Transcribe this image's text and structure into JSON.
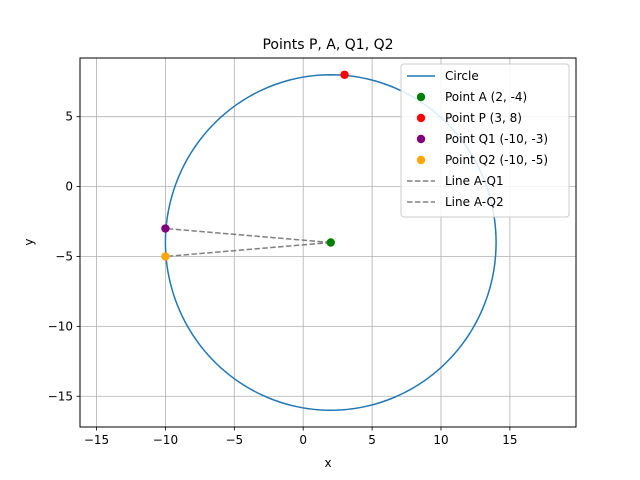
{
  "chart_data": {
    "type": "scatter",
    "title": "Points P, A, Q1, Q2",
    "xlabel": "x",
    "ylabel": "y",
    "xlim": [
      -16.2,
      19.8
    ],
    "ylim": [
      -17.2,
      9.2
    ],
    "grid": true,
    "legend_position": "top-right",
    "x_ticks": [
      -15,
      -10,
      -5,
      0,
      5,
      10,
      15
    ],
    "y_ticks": [
      -15,
      -10,
      -5,
      0,
      5
    ],
    "x_tick_labels": [
      "−15",
      "−10",
      "−5",
      "0",
      "5",
      "10",
      "15"
    ],
    "y_tick_labels": [
      "−15",
      "−10",
      "−5",
      "0",
      "5"
    ],
    "circle": {
      "name": "Circle",
      "center": [
        2,
        -4
      ],
      "radius": 12,
      "color": "#1f77b4"
    },
    "points": [
      {
        "name": "Point A (2, -4)",
        "x": 2,
        "y": -4,
        "color": "#008000"
      },
      {
        "name": "Point P (3, 8)",
        "x": 3,
        "y": 8,
        "color": "#ff0000"
      },
      {
        "name": "Point Q1 (-10, -3)",
        "x": -10,
        "y": -3,
        "color": "#800080"
      },
      {
        "name": "Point Q2 (-10, -5)",
        "x": -10,
        "y": -5,
        "color": "#ffa500"
      }
    ],
    "lines": [
      {
        "name": "Line A-Q1",
        "from": [
          2,
          -4
        ],
        "to": [
          -10,
          -3
        ],
        "color": "#808080",
        "style": "dashed"
      },
      {
        "name": "Line A-Q2",
        "from": [
          2,
          -4
        ],
        "to": [
          -10,
          -5
        ],
        "color": "#808080",
        "style": "dashed"
      }
    ]
  }
}
